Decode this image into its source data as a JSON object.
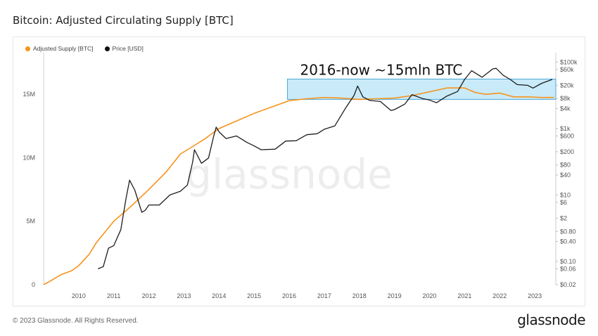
{
  "header": {
    "title": "Bitcoin: Adjusted Circulating Supply [BTC]"
  },
  "footer": {
    "copyright": "© 2023 Glassnode. All Rights Reserved.",
    "brand": "glassnode"
  },
  "watermark": "glassnode",
  "colors": {
    "supply": "#f7931a",
    "price": "#111111",
    "highlight": "#bfe6f7",
    "highlight_border": "#4aa8d8"
  },
  "chart_data": {
    "type": "line",
    "title": "Bitcoin: Adjusted Circulating Supply [BTC]",
    "legend": [
      "Adjusted Supply [BTC]",
      "Price [USD]"
    ],
    "legend_position": "top-left",
    "grid": false,
    "x_ticks": [
      "2010",
      "2011",
      "2012",
      "2013",
      "2014",
      "2015",
      "2016",
      "2017",
      "2018",
      "2019",
      "2020",
      "2021",
      "2022",
      "2023"
    ],
    "x_range": [
      2009.0,
      2023.6
    ],
    "y_left": {
      "scale": "linear",
      "range": [
        0,
        18000000
      ],
      "ticks": [
        0,
        5000000,
        10000000,
        15000000
      ],
      "tick_labels": [
        "0",
        "5M",
        "10M",
        "15M"
      ]
    },
    "y_right": {
      "scale": "log",
      "range": [
        0.02,
        150000
      ],
      "ticks": [
        0.02,
        0.06,
        0.1,
        0.4,
        0.8,
        2,
        6,
        10,
        40,
        80,
        200,
        600,
        1000,
        4000,
        8000,
        20000,
        60000,
        100000
      ],
      "tick_labels": [
        "$0.02",
        "$0.06",
        "$0.10",
        "$0.40",
        "$0.80",
        "$2",
        "$6",
        "$10",
        "$40",
        "$80",
        "$200",
        "$600",
        "$1k",
        "$4k",
        "$8k",
        "$20k",
        "$60k",
        "$100k"
      ]
    },
    "annotation": {
      "text": "2016-now ~15mln BTC",
      "x_from": 2015.95,
      "x_to": 2023.6,
      "y_from": 14600000,
      "y_to": 16200000
    },
    "series": [
      {
        "name": "Adjusted Supply [BTC]",
        "axis": "left",
        "color": "#f7931a",
        "x": [
          2009.0,
          2009.2,
          2009.5,
          2009.8,
          2010.0,
          2010.3,
          2010.5,
          2011.0,
          2011.5,
          2012.0,
          2012.5,
          2012.9,
          2013.2,
          2013.6,
          2014.0,
          2014.5,
          2015.0,
          2015.5,
          2016.0,
          2016.5,
          2017.0,
          2017.5,
          2018.0,
          2018.5,
          2019.0,
          2019.5,
          2020.0,
          2020.5,
          2021.0,
          2021.3,
          2021.6,
          2022.0,
          2022.4,
          2022.8,
          2023.2,
          2023.55
        ],
        "y": [
          0,
          300000,
          800000,
          1100000,
          1500000,
          2400000,
          3300000,
          5000000,
          6200000,
          7500000,
          8900000,
          10300000,
          10800000,
          11500000,
          12300000,
          12900000,
          13500000,
          14000000,
          14500000,
          14650000,
          14750000,
          14700000,
          14600000,
          14650000,
          14700000,
          14900000,
          15200000,
          15500000,
          15500000,
          15150000,
          15000000,
          15100000,
          14800000,
          14800000,
          14750000,
          14750000
        ]
      },
      {
        "name": "Price [USD]",
        "axis": "right",
        "color": "#111111",
        "x": [
          2010.55,
          2010.7,
          2010.85,
          2011.0,
          2011.2,
          2011.35,
          2011.45,
          2011.6,
          2011.8,
          2011.9,
          2012.0,
          2012.3,
          2012.6,
          2012.9,
          2013.1,
          2013.25,
          2013.3,
          2013.5,
          2013.7,
          2013.85,
          2013.92,
          2014.0,
          2014.2,
          2014.5,
          2014.8,
          2015.0,
          2015.2,
          2015.6,
          2015.9,
          2016.2,
          2016.5,
          2016.8,
          2017.0,
          2017.3,
          2017.6,
          2017.85,
          2017.95,
          2018.1,
          2018.3,
          2018.6,
          2018.9,
          2019.0,
          2019.3,
          2019.5,
          2019.8,
          2020.0,
          2020.2,
          2020.5,
          2020.8,
          2021.0,
          2021.2,
          2021.5,
          2021.8,
          2021.9,
          2022.1,
          2022.3,
          2022.5,
          2022.8,
          2022.95,
          2023.2,
          2023.5
        ],
        "y": [
          0.06,
          0.07,
          0.25,
          0.3,
          0.9,
          8,
          28,
          14,
          3,
          3.5,
          5,
          5,
          10,
          13,
          20,
          100,
          230,
          90,
          130,
          600,
          1100,
          800,
          500,
          600,
          380,
          300,
          230,
          240,
          420,
          430,
          650,
          700,
          950,
          1200,
          4000,
          10000,
          19000,
          9000,
          7000,
          6500,
          3500,
          3700,
          5500,
          10500,
          8000,
          7200,
          6000,
          9500,
          13000,
          30000,
          55000,
          35000,
          62000,
          65000,
          40000,
          30000,
          21000,
          20000,
          16500,
          23000,
          30000
        ]
      }
    ]
  }
}
